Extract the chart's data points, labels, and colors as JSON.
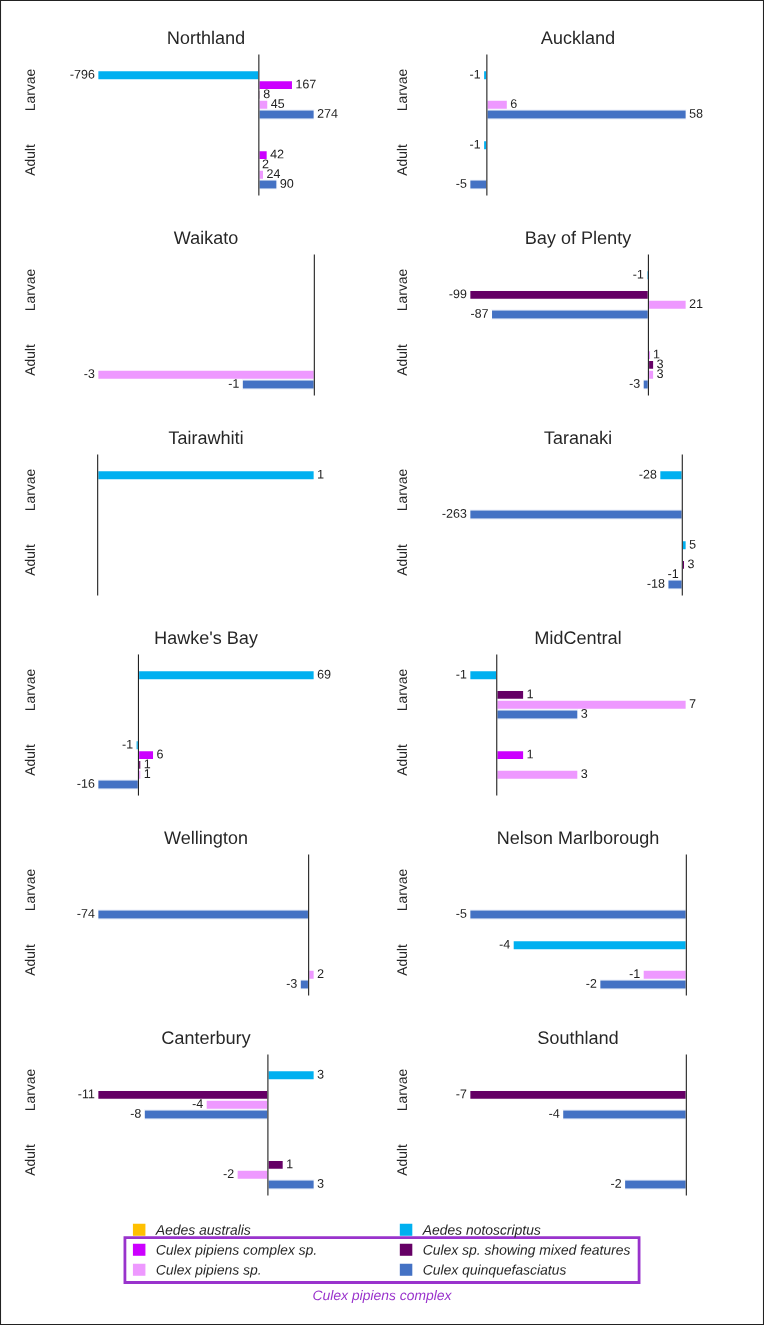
{
  "chart_data": [
    {
      "type": "bar",
      "orientation": "horizontal",
      "title": "Northland",
      "categories": [
        "Larvae",
        "Adult"
      ],
      "data_labels": true,
      "tick_labels": "y",
      "legend": "bottom",
      "annotations": [
        "Culex pipiens complex"
      ],
      "series": [
        {
          "name": "Aedes australis",
          "color": "#ffc000",
          "values": [
            null,
            null
          ]
        },
        {
          "name": "Aedes notoscriptus",
          "color": "#00b0f0",
          "values": [
            -796,
            null
          ]
        },
        {
          "name": "Culex pipiens complex sp.",
          "color": "#cc00ff",
          "values": [
            167,
            42
          ]
        },
        {
          "name": "Culex sp. showing mixed features",
          "color": "#660066",
          "values": [
            8,
            2
          ]
        },
        {
          "name": "Culex pipiens sp.",
          "color": "#ee99ff",
          "values": [
            45,
            24
          ]
        },
        {
          "name": "Culex quinquefasciatus",
          "color": "#4472c4",
          "values": [
            274,
            90
          ]
        }
      ]
    },
    {
      "type": "bar",
      "orientation": "horizontal",
      "title": "Auckland",
      "categories": [
        "Larvae",
        "Adult"
      ],
      "data_labels": true,
      "tick_labels": "y",
      "series": [
        {
          "values": [
            null,
            null
          ]
        },
        {
          "color": "#00b0f0",
          "values": [
            -1,
            -1
          ]
        },
        {
          "values": [
            null,
            null
          ]
        },
        {
          "values": [
            null,
            null
          ]
        },
        {
          "color": "#ee99ff",
          "values": [
            6,
            null
          ]
        },
        {
          "color": "#4472c4",
          "values": [
            58,
            -5
          ]
        }
      ]
    },
    {
      "type": "bar",
      "orientation": "horizontal",
      "title": "Waikato",
      "categories": [
        "Larvae",
        "Adult"
      ],
      "data_labels": true,
      "tick_labels": "y",
      "series": [
        {
          "values": [
            null,
            null
          ]
        },
        {
          "values": [
            null,
            null
          ]
        },
        {
          "values": [
            null,
            null
          ]
        },
        {
          "values": [
            null,
            null
          ]
        },
        {
          "color": "#ee99ff",
          "values": [
            null,
            -3
          ]
        },
        {
          "color": "#4472c4",
          "values": [
            null,
            -1
          ]
        }
      ]
    },
    {
      "type": "bar",
      "orientation": "horizontal",
      "title": "Bay of Plenty",
      "categories": [
        "Larvae",
        "Adult"
      ],
      "data_labels": true,
      "tick_labels": "y",
      "series": [
        {
          "values": [
            null,
            null
          ]
        },
        {
          "color": "#00b0f0",
          "values": [
            -1,
            null
          ]
        },
        {
          "color": "#cc00ff",
          "values": [
            null,
            1
          ]
        },
        {
          "color": "#660066",
          "values": [
            -99,
            3
          ]
        },
        {
          "color": "#ee99ff",
          "values": [
            21,
            3
          ]
        },
        {
          "color": "#4472c4",
          "values": [
            -87,
            -3
          ]
        }
      ]
    },
    {
      "type": "bar",
      "orientation": "horizontal",
      "title": "Tairawhiti",
      "categories": [
        "Larvae",
        "Adult"
      ],
      "data_labels": true,
      "tick_labels": "y",
      "series": [
        {
          "values": [
            null,
            null
          ]
        },
        {
          "color": "#00b0f0",
          "values": [
            1,
            null
          ]
        },
        {
          "values": [
            null,
            null
          ]
        },
        {
          "values": [
            null,
            null
          ]
        },
        {
          "values": [
            null,
            null
          ]
        },
        {
          "values": [
            null,
            null
          ]
        }
      ]
    },
    {
      "type": "bar",
      "orientation": "horizontal",
      "title": "Taranaki",
      "categories": [
        "Larvae",
        "Adult"
      ],
      "data_labels": true,
      "tick_labels": "y",
      "series": [
        {
          "values": [
            null,
            null
          ]
        },
        {
          "color": "#00b0f0",
          "values": [
            -28,
            5
          ]
        },
        {
          "values": [
            null,
            null
          ]
        },
        {
          "color": "#660066",
          "values": [
            null,
            3
          ]
        },
        {
          "color": "#ee99ff",
          "values": [
            null,
            -1
          ]
        },
        {
          "color": "#4472c4",
          "values": [
            -263,
            -18
          ]
        }
      ]
    },
    {
      "type": "bar",
      "orientation": "horizontal",
      "title": "Hawke's Bay",
      "categories": [
        "Larvae",
        "Adult"
      ],
      "data_labels": true,
      "tick_labels": "y",
      "series": [
        {
          "values": [
            null,
            null
          ]
        },
        {
          "color": "#00b0f0",
          "values": [
            69,
            -1
          ]
        },
        {
          "color": "#cc00ff",
          "values": [
            null,
            6
          ]
        },
        {
          "color": "#660066",
          "values": [
            null,
            1
          ]
        },
        {
          "color": "#ee99ff",
          "values": [
            null,
            1
          ]
        },
        {
          "color": "#4472c4",
          "values": [
            null,
            -16
          ]
        }
      ]
    },
    {
      "type": "bar",
      "orientation": "horizontal",
      "title": "MidCentral",
      "categories": [
        "Larvae",
        "Adult"
      ],
      "data_labels": true,
      "tick_labels": "y",
      "series": [
        {
          "values": [
            null,
            null
          ]
        },
        {
          "color": "#00b0f0",
          "values": [
            -1,
            null
          ]
        },
        {
          "color": "#cc00ff",
          "values": [
            null,
            1
          ]
        },
        {
          "color": "#660066",
          "values": [
            1,
            null
          ]
        },
        {
          "color": "#ee99ff",
          "values": [
            7,
            3
          ]
        },
        {
          "color": "#4472c4",
          "values": [
            3,
            null
          ]
        }
      ]
    },
    {
      "type": "bar",
      "orientation": "horizontal",
      "title": "Wellington",
      "categories": [
        "Larvae",
        "Adult"
      ],
      "data_labels": true,
      "tick_labels": "y",
      "series": [
        {
          "values": [
            null,
            null
          ]
        },
        {
          "values": [
            null,
            null
          ]
        },
        {
          "values": [
            null,
            null
          ]
        },
        {
          "values": [
            null,
            null
          ]
        },
        {
          "color": "#ee99ff",
          "values": [
            null,
            2
          ]
        },
        {
          "color": "#4472c4",
          "values": [
            -74,
            -3
          ]
        }
      ]
    },
    {
      "type": "bar",
      "orientation": "horizontal",
      "title": "Nelson Marlborough",
      "categories": [
        "Larvae",
        "Adult"
      ],
      "data_labels": true,
      "tick_labels": "y",
      "series": [
        {
          "values": [
            null,
            null
          ]
        },
        {
          "color": "#00b0f0",
          "values": [
            null,
            -4
          ]
        },
        {
          "values": [
            null,
            null
          ]
        },
        {
          "values": [
            null,
            null
          ]
        },
        {
          "color": "#ee99ff",
          "values": [
            null,
            -1
          ]
        },
        {
          "color": "#4472c4",
          "values": [
            -5,
            -2
          ]
        }
      ]
    },
    {
      "type": "bar",
      "orientation": "horizontal",
      "title": "Canterbury",
      "categories": [
        "Larvae",
        "Adult"
      ],
      "data_labels": true,
      "tick_labels": "y",
      "series": [
        {
          "values": [
            null,
            null
          ]
        },
        {
          "color": "#00b0f0",
          "values": [
            3,
            null
          ]
        },
        {
          "values": [
            null,
            null
          ]
        },
        {
          "color": "#660066",
          "values": [
            -11,
            1
          ]
        },
        {
          "color": "#ee99ff",
          "values": [
            -4,
            -2
          ]
        },
        {
          "color": "#4472c4",
          "values": [
            -8,
            3
          ]
        }
      ]
    },
    {
      "type": "bar",
      "orientation": "horizontal",
      "title": "Southland",
      "categories": [
        "Larvae",
        "Adult"
      ],
      "data_labels": true,
      "tick_labels": "y",
      "series": [
        {
          "values": [
            null,
            null
          ]
        },
        {
          "values": [
            null,
            null
          ]
        },
        {
          "values": [
            null,
            null
          ]
        },
        {
          "color": "#660066",
          "values": [
            -7,
            null
          ]
        },
        {
          "values": [
            null,
            null
          ]
        },
        {
          "color": "#4472c4",
          "values": [
            -4,
            -2
          ]
        }
      ]
    }
  ]
}
